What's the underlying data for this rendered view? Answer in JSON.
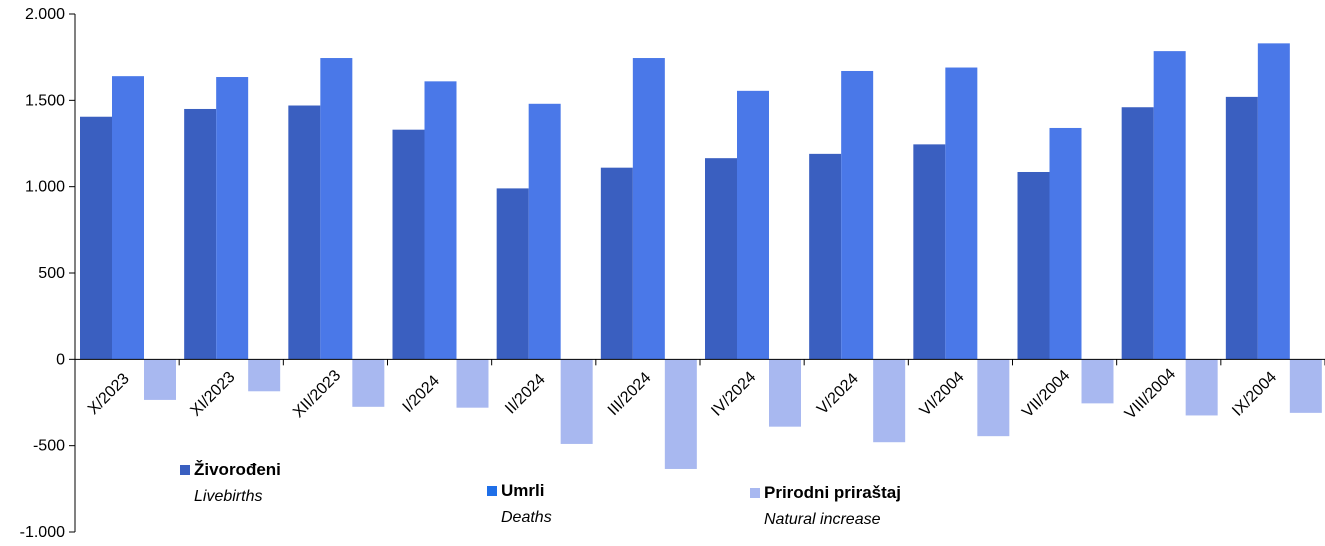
{
  "chart_data": {
    "type": "bar",
    "categories": [
      "X/2023",
      "XI/2023",
      "XII/2023",
      "I/2024",
      "II/2024",
      "III/2024",
      "IV/2024",
      "V/2024",
      "VI/2004",
      "VII/2004",
      "VIII/2004",
      "IX/2004"
    ],
    "series": [
      {
        "name": "Živorođeni",
        "name_en": "Livebirths",
        "color": "#3a5fc0",
        "values": [
          1405,
          1450,
          1470,
          1330,
          990,
          1110,
          1165,
          1190,
          1245,
          1085,
          1460,
          1520
        ]
      },
      {
        "name": "Umrli",
        "name_en": "Deaths",
        "color": "#4a78e8",
        "values": [
          1640,
          1635,
          1745,
          1610,
          1480,
          1745,
          1555,
          1670,
          1690,
          1340,
          1785,
          1830
        ]
      },
      {
        "name": "Prirodni priraštaj",
        "name_en": "Natural increase",
        "color": "#a8b8f0",
        "values": [
          -235,
          -185,
          -275,
          -280,
          -490,
          -635,
          -390,
          -480,
          -445,
          -255,
          -325,
          -310
        ]
      }
    ],
    "ylim": [
      -1000,
      2000
    ],
    "yticks": [
      -1000,
      -500,
      0,
      500,
      1000,
      1500,
      2000
    ],
    "ytick_labels": [
      "-1.000",
      "-500",
      "0",
      "500",
      "1.000",
      "1.500",
      "2.000"
    ],
    "grid": false,
    "legend": "bottom-left"
  }
}
